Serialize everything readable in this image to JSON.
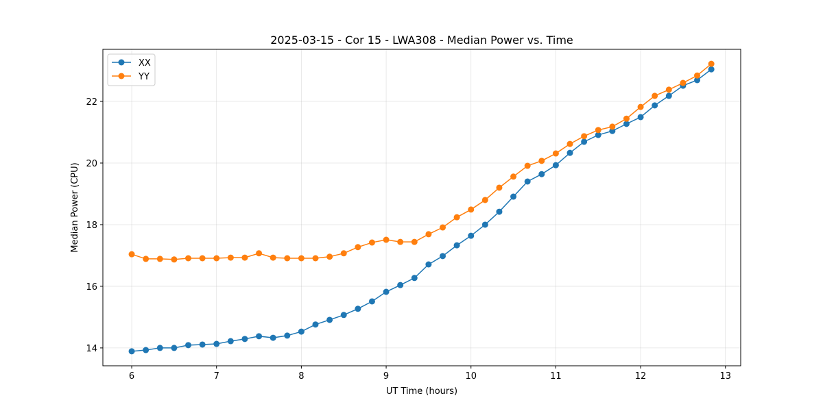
{
  "chart_data": {
    "type": "line",
    "title": "2025-03-15 - Cor 15 - LWA308 - Median Power vs. Time",
    "xlabel": "UT Time (hours)",
    "ylabel": "Median Power (CPU)",
    "xlim": [
      5.66,
      13.18
    ],
    "ylim": [
      13.42,
      23.69
    ],
    "xticks": [
      6,
      7,
      8,
      9,
      10,
      11,
      12,
      13
    ],
    "yticks": [
      14,
      16,
      18,
      20,
      22
    ],
    "grid": true,
    "legend": "top-left",
    "x_start": 6,
    "x_step_hours": 0.16667,
    "series": [
      {
        "name": "XX",
        "color": "#1f77b4",
        "values": [
          13.89,
          13.93,
          14.0,
          14.0,
          14.09,
          14.11,
          14.13,
          14.22,
          14.29,
          14.38,
          14.33,
          14.4,
          14.53,
          14.76,
          14.91,
          15.07,
          15.27,
          15.51,
          15.82,
          16.04,
          16.27,
          16.71,
          16.98,
          17.33,
          17.64,
          18.0,
          18.42,
          18.91,
          19.4,
          19.64,
          19.93,
          20.33,
          20.69,
          20.91,
          21.04,
          21.27,
          21.49,
          21.87,
          22.18,
          22.51,
          22.69,
          23.04
        ]
      },
      {
        "name": "YY",
        "color": "#ff7f0e",
        "values": [
          17.04,
          16.89,
          16.89,
          16.87,
          16.91,
          16.91,
          16.91,
          16.93,
          16.93,
          17.07,
          16.93,
          16.91,
          16.91,
          16.91,
          16.96,
          17.07,
          17.27,
          17.42,
          17.51,
          17.44,
          17.44,
          17.69,
          17.91,
          18.24,
          18.49,
          18.8,
          19.2,
          19.56,
          19.91,
          20.07,
          20.31,
          20.62,
          20.87,
          21.07,
          21.18,
          21.44,
          21.82,
          22.18,
          22.38,
          22.6,
          22.84,
          23.22
        ]
      }
    ]
  }
}
